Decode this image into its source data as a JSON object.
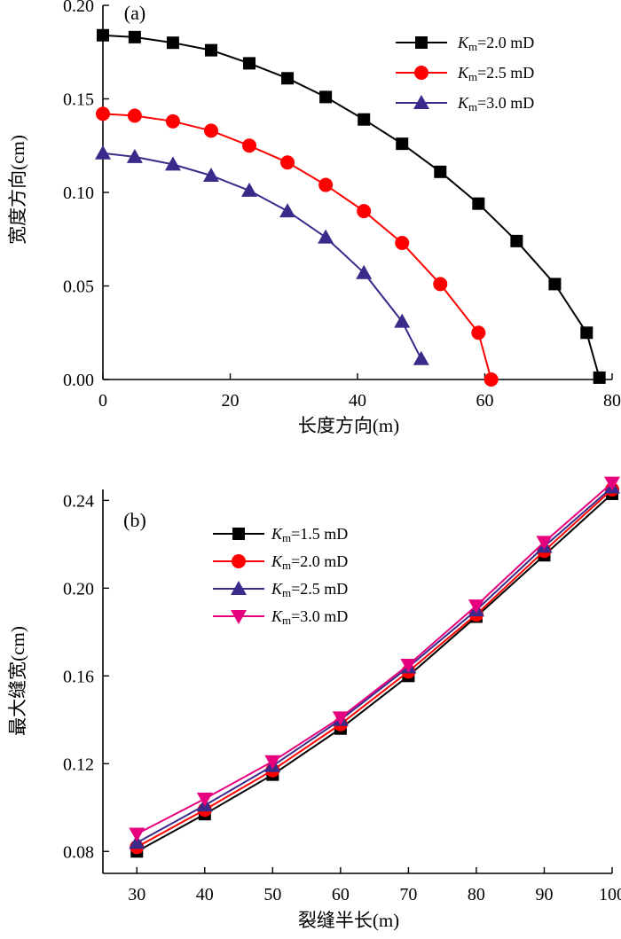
{
  "chart_data": [
    {
      "type": "line",
      "panel_label": "(a)",
      "xlabel": "长度方向(m)",
      "ylabel": "宽度方向(cm)",
      "xlim": [
        0,
        80
      ],
      "ylim": [
        0,
        0.2
      ],
      "xticks": [
        0,
        20,
        40,
        60,
        80
      ],
      "yticks": [
        0.0,
        0.05,
        0.1,
        0.15,
        0.2
      ],
      "ytick_labels": [
        "0.00",
        "0.05",
        "0.10",
        "0.15",
        "0.20"
      ],
      "xtick_labels": [
        "0",
        "20",
        "40",
        "60",
        "80"
      ],
      "grid": false,
      "legend_position": "top-right",
      "series": [
        {
          "name_var": "K",
          "name_sub": "m",
          "name_rest": "=2.0 mD",
          "color": "#000000",
          "marker": "square",
          "x": [
            0,
            5,
            11,
            17,
            23,
            29,
            35,
            41,
            47,
            53,
            59,
            65,
            71,
            76,
            78
          ],
          "y": [
            0.184,
            0.183,
            0.18,
            0.176,
            0.169,
            0.161,
            0.151,
            0.139,
            0.126,
            0.111,
            0.094,
            0.074,
            0.051,
            0.025,
            0.001
          ]
        },
        {
          "name_var": "K",
          "name_sub": "m",
          "name_rest": "=2.5 mD",
          "color": "#ff0000",
          "marker": "circle",
          "x": [
            0,
            5,
            11,
            17,
            23,
            29,
            35,
            41,
            47,
            53,
            59,
            61
          ],
          "y": [
            0.142,
            0.141,
            0.138,
            0.133,
            0.125,
            0.116,
            0.104,
            0.09,
            0.073,
            0.051,
            0.025,
            0.0
          ]
        },
        {
          "name_var": "K",
          "name_sub": "m",
          "name_rest": "=3.0 mD",
          "color": "#3a2a8a",
          "marker": "triangle-up",
          "x": [
            0,
            5,
            11,
            17,
            23,
            29,
            35,
            41,
            47,
            50
          ],
          "y": [
            0.121,
            0.119,
            0.115,
            0.109,
            0.101,
            0.09,
            0.076,
            0.057,
            0.031,
            0.011
          ]
        }
      ]
    },
    {
      "type": "line",
      "panel_label": "(b)",
      "xlabel": "裂缝半长(m)",
      "ylabel": "最大缝宽(cm)",
      "xlim": [
        25,
        100
      ],
      "ylim": [
        0.07,
        0.245
      ],
      "xticks": [
        30,
        40,
        50,
        60,
        70,
        80,
        90,
        100
      ],
      "xtick_labels": [
        "30",
        "40",
        "50",
        "60",
        "70",
        "80",
        "90",
        "100"
      ],
      "yticks": [
        0.08,
        0.12,
        0.16,
        0.2,
        0.24
      ],
      "ytick_labels": [
        "0.08",
        "0.12",
        "0.16",
        "0.20",
        "0.24"
      ],
      "grid": false,
      "legend_position": "top-left",
      "x": [
        30,
        40,
        50,
        60,
        70,
        80,
        90,
        100
      ],
      "series": [
        {
          "name_var": "K",
          "name_sub": "m",
          "name_rest": "=1.5 mD",
          "color": "#000000",
          "marker": "square",
          "values": [
            0.08,
            0.097,
            0.115,
            0.136,
            0.16,
            0.187,
            0.215,
            0.243
          ]
        },
        {
          "name_var": "K",
          "name_sub": "m",
          "name_rest": "=2.0 mD",
          "color": "#ff0000",
          "marker": "circle",
          "values": [
            0.082,
            0.099,
            0.117,
            0.138,
            0.162,
            0.188,
            0.217,
            0.245
          ]
        },
        {
          "name_var": "K",
          "name_sub": "m",
          "name_rest": "=2.5 mD",
          "color": "#3a2a8a",
          "marker": "triangle-up",
          "values": [
            0.084,
            0.101,
            0.119,
            0.14,
            0.164,
            0.19,
            0.219,
            0.246
          ]
        },
        {
          "name_var": "K",
          "name_sub": "m",
          "name_rest": "=3.0 mD",
          "color": "#e6007e",
          "marker": "triangle-down",
          "values": [
            0.088,
            0.104,
            0.121,
            0.141,
            0.165,
            0.192,
            0.221,
            0.248
          ]
        }
      ]
    }
  ]
}
